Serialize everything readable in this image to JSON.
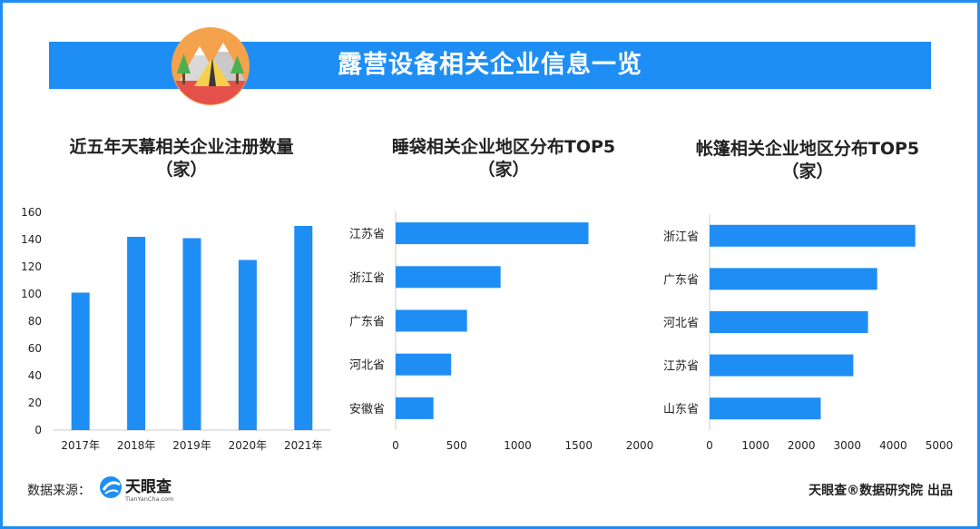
{
  "banner": {
    "title": "露营设备相关企业信息一览"
  },
  "footer": {
    "source_label": "数据来源：",
    "brand_name": "天眼查",
    "brand_url": "TianYanCha.com",
    "credit": "天眼查®数据研究院 出品"
  },
  "colors": {
    "accent": "#1e8ef5",
    "text": "#222222",
    "axis": "#cccccc"
  },
  "chart_data": [
    {
      "type": "bar",
      "title": "近五年天幕相关企业注册数量",
      "subtitle": "（家）",
      "categories": [
        "2017年",
        "2018年",
        "2019年",
        "2020年",
        "2021年"
      ],
      "values": [
        101,
        142,
        141,
        125,
        150
      ],
      "ylim": [
        0,
        160
      ],
      "yticks": [
        0,
        20,
        40,
        60,
        80,
        100,
        120,
        140,
        160
      ],
      "grid": false
    },
    {
      "type": "bar",
      "orientation": "horizontal",
      "title": "睡袋相关企业地区分布TOP5",
      "subtitle": "（家）",
      "categories": [
        "江苏省",
        "浙江省",
        "广东省",
        "河北省",
        "安徽省"
      ],
      "values": [
        1580,
        860,
        585,
        455,
        310
      ],
      "xlim": [
        0,
        2000
      ],
      "xticks": [
        0,
        500,
        1000,
        1500,
        2000
      ],
      "grid": false
    },
    {
      "type": "bar",
      "orientation": "horizontal",
      "title": "帐篷相关企业地区分布TOP5",
      "subtitle": "（家）",
      "categories": [
        "浙江省",
        "广东省",
        "河北省",
        "江苏省",
        "山东省"
      ],
      "values": [
        4480,
        3650,
        3450,
        3130,
        2420
      ],
      "xlim": [
        0,
        5000
      ],
      "xticks": [
        0,
        1000,
        2000,
        3000,
        4000,
        5000
      ],
      "grid": false
    }
  ]
}
